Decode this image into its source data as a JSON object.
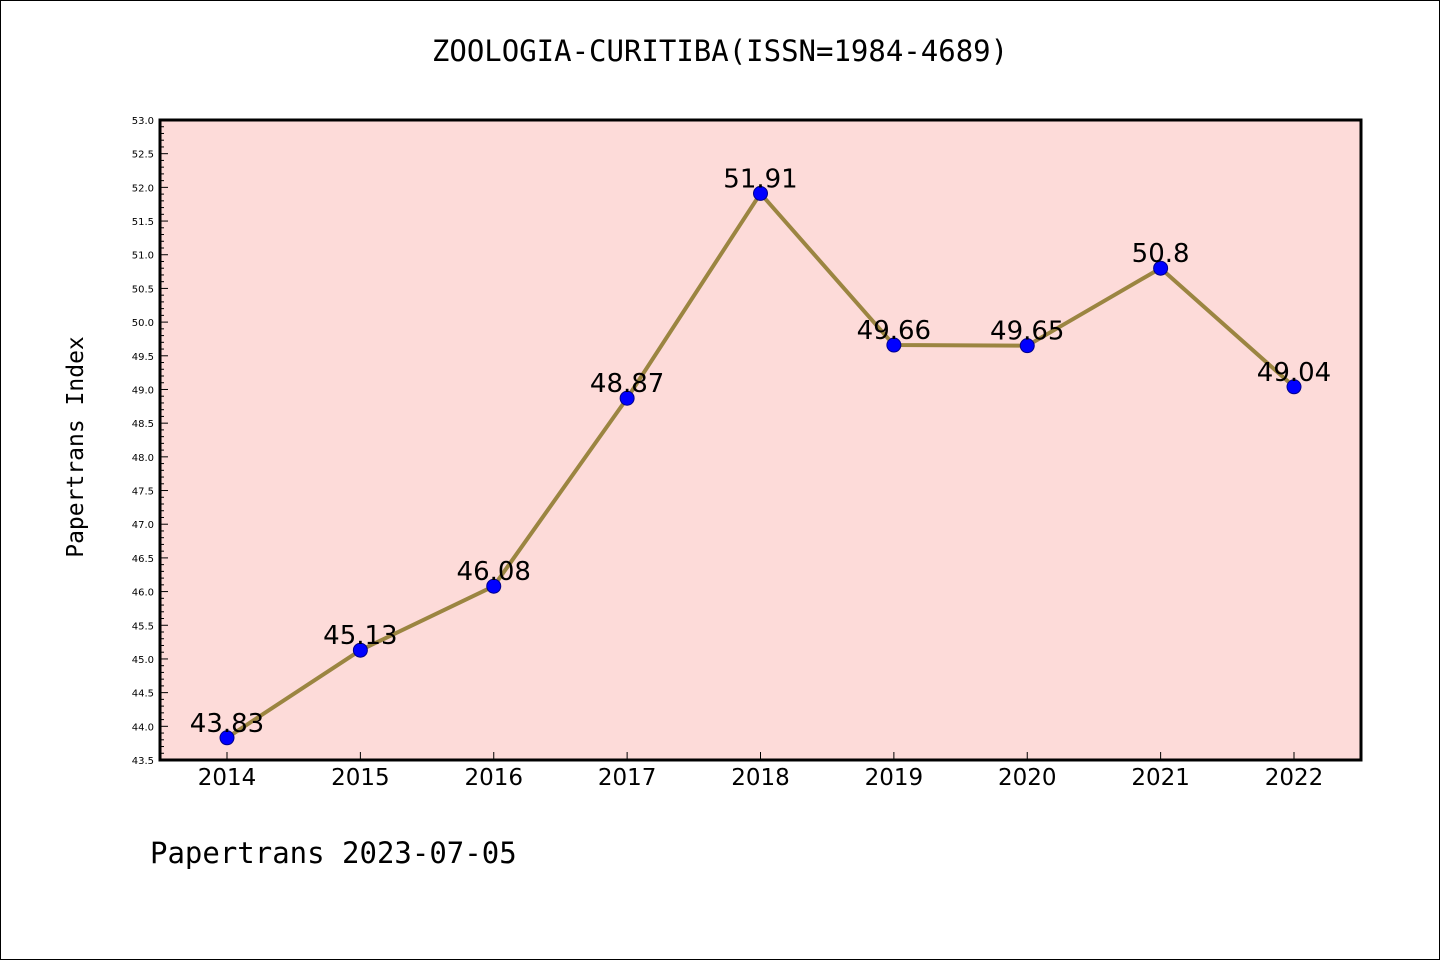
{
  "title": "ZOOLOGIA-CURITIBA(ISSN=1984-4689)",
  "footer": "Papertrans 2023-07-05",
  "colors": {
    "plot_background": "#fddbd9",
    "line": "#9b8541",
    "marker": "#0000ff",
    "marker_edge": "#00008b"
  },
  "chart_data": {
    "type": "line",
    "title": "ZOOLOGIA-CURITIBA(ISSN=1984-4689)",
    "xlabel": "",
    "ylabel": "Papertrans Index",
    "categories": [
      "2014",
      "2015",
      "2016",
      "2017",
      "2018",
      "2019",
      "2020",
      "2021",
      "2022"
    ],
    "values": [
      43.83,
      45.13,
      46.08,
      48.87,
      51.91,
      49.66,
      49.65,
      50.8,
      49.04
    ],
    "data_labels": [
      "43.83",
      "45.13",
      "46.08",
      "48.87",
      "51.91",
      "49.66",
      "49.65",
      "50.8",
      "49.04"
    ],
    "ylim": [
      43.5,
      53.0
    ],
    "yticks": [
      "43.5",
      "44.0",
      "44.5",
      "45.0",
      "45.5",
      "46.0",
      "46.5",
      "47.0",
      "47.5",
      "48.0",
      "48.5",
      "49.0",
      "49.5",
      "50.0",
      "50.5",
      "51.0",
      "51.5",
      "52.0",
      "52.5",
      "53.0"
    ],
    "grid": false,
    "legend": "none"
  }
}
